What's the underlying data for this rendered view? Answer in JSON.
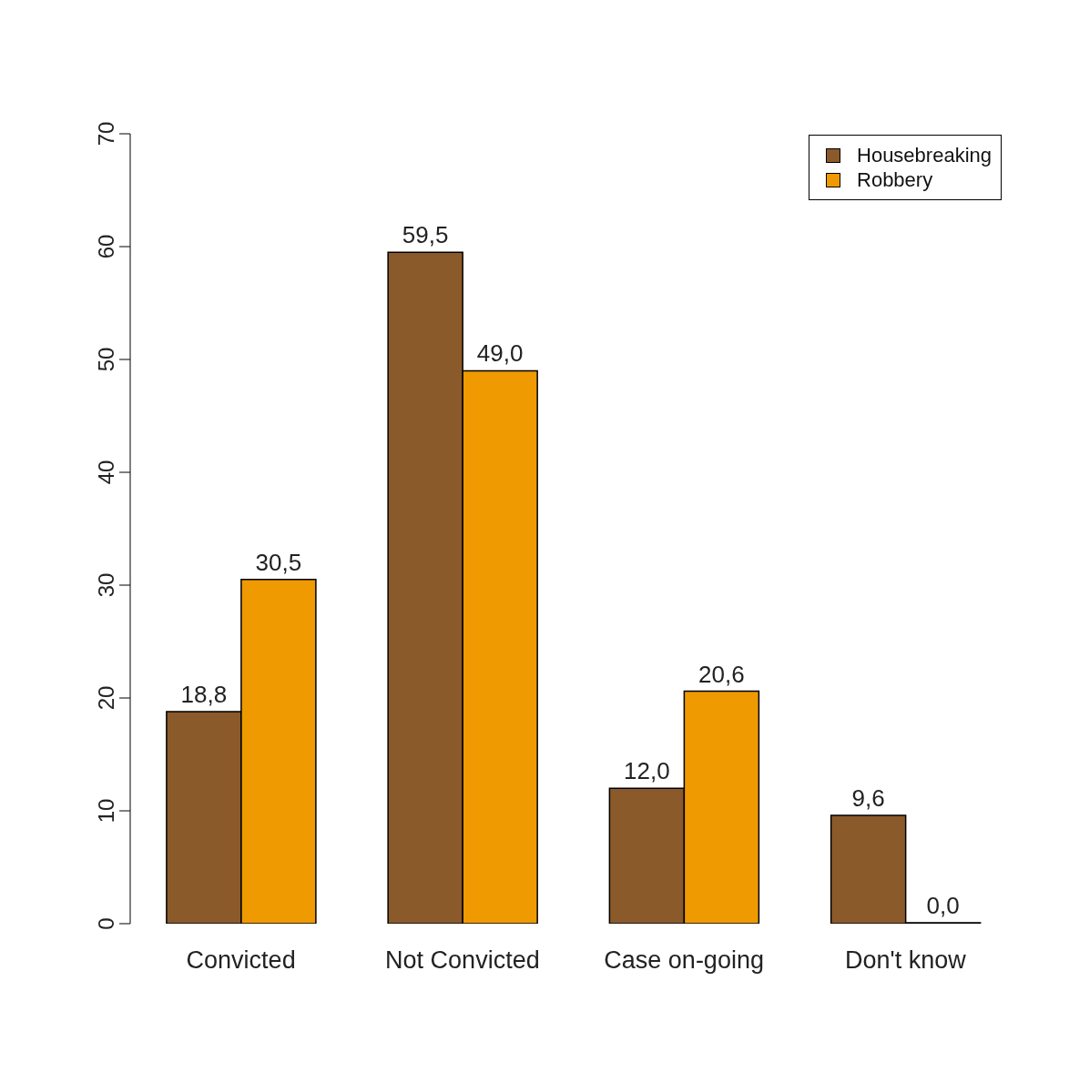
{
  "chart_data": {
    "type": "bar",
    "categories": [
      "Convicted",
      "Not Convicted",
      "Case on-going",
      "Don't know"
    ],
    "series": [
      {
        "name": "Housebreaking",
        "color": "#8b5a2b",
        "values": [
          18.8,
          59.5,
          12.0,
          9.6
        ],
        "value_labels": [
          "18,8",
          "59,5",
          "12,0",
          "9,6"
        ]
      },
      {
        "name": "Robbery",
        "color": "#ee9a00",
        "values": [
          30.5,
          49.0,
          20.6,
          0.0
        ],
        "value_labels": [
          "30,5",
          "49,0",
          "20,6",
          "0,0"
        ]
      }
    ],
    "ylim": [
      0,
      70
    ],
    "yticks": [
      0,
      10,
      20,
      30,
      40,
      50,
      60,
      70
    ],
    "grid": false,
    "legend": "top right"
  }
}
